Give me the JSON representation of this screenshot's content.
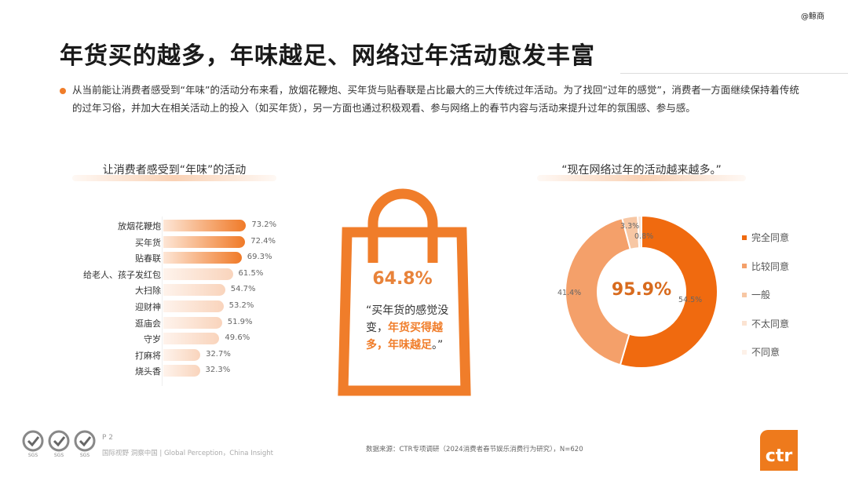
{
  "watermark": "@鲸商",
  "title": "年货买的越多，年味越足、网络过年活动愈发丰富",
  "paragraph": "从当前能让消费者感受到“年味”的活动分布来看，放烟花鞭炮、买年货与贴春联是占比最大的三大传统过年活动。为了找回“过年的感觉”，消费者一方面继续保持着传统的过年习俗，并加大在相关活动上的投入（如买年货），另一方面也通过积极观看、参与网络上的春节内容与活动来提升过年的氛围感、参与感。",
  "colors": {
    "accent": "#f07d2a",
    "dark_orange": "#f06a0f",
    "mid_orange": "#f4a06a",
    "light_orange": "#f7c7a4"
  },
  "chart_data": [
    {
      "type": "bar",
      "orientation": "horizontal",
      "title": "让消费者感受到“年味”的活动",
      "unit": "%",
      "categories": [
        "放烟花鞭炮",
        "买年货",
        "贴春联",
        "给老人、孩子发红包",
        "大扫除",
        "迎财神",
        "逛庙会",
        "守岁",
        "打麻将",
        "烧头香"
      ],
      "values": [
        73.2,
        72.4,
        69.3,
        61.5,
        54.7,
        53.2,
        51.9,
        49.6,
        32.7,
        32.3
      ],
      "labels": [
        "73.2%",
        "72.4%",
        "69.3%",
        "61.5%",
        "54.7%",
        "53.2%",
        "51.9%",
        "49.6%",
        "32.7%",
        "32.3%"
      ],
      "highlighted_top": 3
    },
    {
      "type": "pie",
      "variant": "donut",
      "title": "“现在网络过年的活动越来越多。”",
      "center_label": "95.9%",
      "categories": [
        "完全同意",
        "比较同意",
        "一般",
        "不太同意",
        "不同意"
      ],
      "values": [
        54.5,
        41.4,
        3.3,
        0.8,
        0
      ],
      "labels": [
        "54.5%",
        "41.4%",
        "3.3%",
        "0.8%",
        ""
      ],
      "colors": [
        "#f06a0f",
        "#f4a06a",
        "#f7c7a4",
        "#fbe3d2",
        "#fdf1e8"
      ],
      "legend": "right"
    }
  ],
  "bag": {
    "percent": "64.8%",
    "quote_pre": "“买年货的感觉没变，",
    "quote_hl1": "年货买得越多，",
    "quote_hl2": "年味越足",
    "quote_end": "。”"
  },
  "footer": {
    "page": "P 2",
    "slogan": "国际视野 洞察中国 | Global Perception，China Insight",
    "source": "数据来源：CTR专项调研（2024消费者春节娱乐消费行为研究），N=620",
    "logo": "ctr",
    "cert_text": "SGS"
  }
}
